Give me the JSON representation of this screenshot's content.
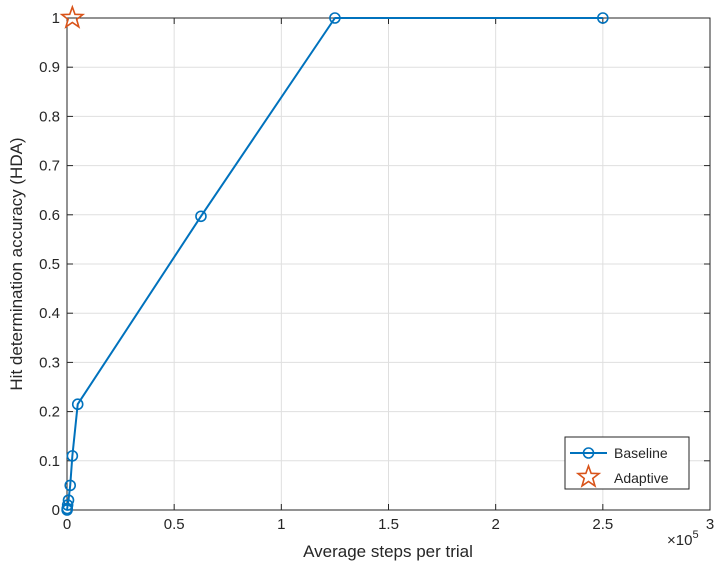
{
  "chart_data": {
    "type": "line",
    "title": "",
    "xlabel": "Average steps per trial",
    "ylabel": "Hit determination accuracy (HDA)",
    "x_exponent_label": "×10",
    "x_exponent_power": "5",
    "x_multiplier": 100000,
    "xlim": [
      0,
      300000
    ],
    "ylim": [
      0,
      1
    ],
    "x_ticks": [
      0,
      50000,
      100000,
      150000,
      200000,
      250000,
      300000
    ],
    "x_tick_labels": [
      "0",
      "0.5",
      "1",
      "1.5",
      "2",
      "2.5",
      "3"
    ],
    "y_ticks": [
      0,
      0.1,
      0.2,
      0.3,
      0.4,
      0.5,
      0.6,
      0.7,
      0.8,
      0.9,
      1
    ],
    "y_tick_labels": [
      "0",
      "0.1",
      "0.2",
      "0.3",
      "0.4",
      "0.5",
      "0.6",
      "0.7",
      "0.8",
      "0.9",
      "1"
    ],
    "grid": true,
    "legend_position": "bottom-right",
    "series": [
      {
        "name": "Baseline",
        "marker": "circle",
        "color": "#0072BD",
        "line": true,
        "x": [
          50,
          100,
          300,
          700,
          1500,
          2500,
          5000,
          62500,
          125000,
          250000
        ],
        "y": [
          0.0,
          0.003,
          0.01,
          0.02,
          0.05,
          0.11,
          0.215,
          0.597,
          1.0,
          1.0
        ]
      },
      {
        "name": "Adaptive",
        "marker": "star",
        "color": "#D95319",
        "line": false,
        "x": [
          2500
        ],
        "y": [
          1.0
        ]
      }
    ]
  }
}
